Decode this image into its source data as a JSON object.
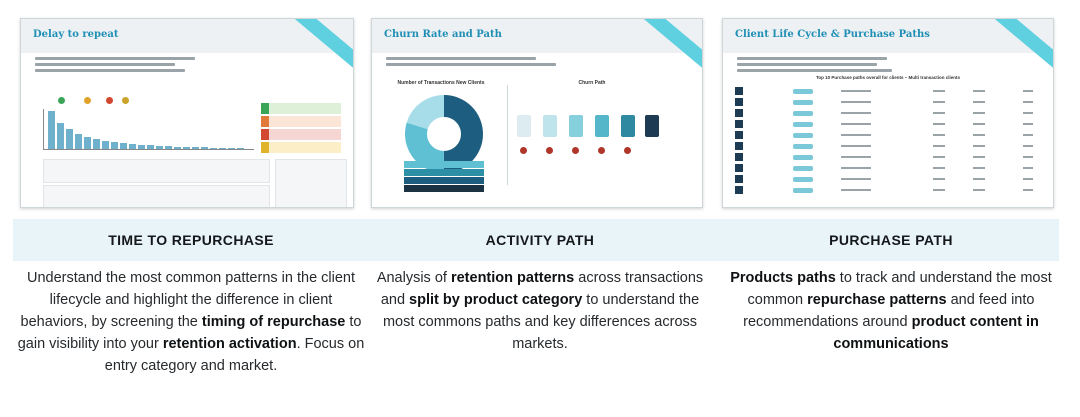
{
  "slides": [
    {
      "title": "Delay to repeat"
    },
    {
      "title": "Churn Rate and Path",
      "donut_title": "Number of Transactions New Clients",
      "path_title": "Churn Path"
    },
    {
      "title": "Client Life Cycle & Purchase Paths",
      "table_title": "Top 10 Purchase paths overall for clients – Multi transaction clients"
    }
  ],
  "columns": [
    {
      "heading": "TIME TO REPURCHASE",
      "parts": [
        {
          "t": "Understand the most common patterns in the client lifecycle and highlight the difference in client behaviors, by screening the ",
          "b": false
        },
        {
          "t": "timing of repurchase",
          "b": true
        },
        {
          "t": " to gain visibility into your ",
          "b": false
        },
        {
          "t": "retention activation",
          "b": true
        },
        {
          "t": ". Focus on entry category and market.",
          "b": false
        }
      ]
    },
    {
      "heading": "ACTIVITY PATH",
      "parts": [
        {
          "t": "Analysis of ",
          "b": false
        },
        {
          "t": "retention patterns",
          "b": true
        },
        {
          "t": " across transactions and ",
          "b": false
        },
        {
          "t": "split by product category",
          "b": true
        },
        {
          "t": " to understand the most commons paths and key differences across markets.",
          "b": false
        }
      ]
    },
    {
      "heading": "PURCHASE PATH",
      "parts": [
        {
          "t": "Products paths",
          "b": true
        },
        {
          "t": " to track and understand the most common ",
          "b": false
        },
        {
          "t": "repurchase patterns",
          "b": true
        },
        {
          "t": " and feed into recommendations around ",
          "b": false
        },
        {
          "t": "product content in communications",
          "b": true
        }
      ]
    }
  ],
  "colors": {
    "band": "#e9f4f8",
    "accent": "#1f8fb5",
    "teal": "#5fd0df",
    "navy": "#1d3b52"
  }
}
